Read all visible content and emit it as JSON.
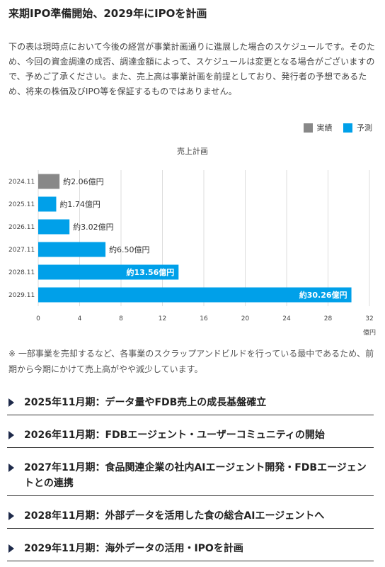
{
  "header": {
    "title": "来期IPO準備開始、2029年にIPOを計画"
  },
  "intro_text": "下の表は現時点において今後の経営が事業計画通りに進展した場合のスケジュールです。そのため、今回の資金調達の成否、調達金額によって、スケジュールは変更となる場合がございますので、予めご了承ください。また、売上高は事業計画を前提としており、発行者の予想であるため、将来の株価及びIPO等を保証するものではありません。",
  "legend": {
    "actual": {
      "label": "実績",
      "color": "#888888"
    },
    "forecast": {
      "label": "予測",
      "color": "#00a0e9"
    }
  },
  "chart_data": {
    "type": "bar",
    "orientation": "horizontal",
    "title": "売上計画",
    "xlabel": "億円",
    "xlim": [
      0,
      32
    ],
    "xticks": [
      0,
      4,
      8,
      12,
      16,
      20,
      24,
      28,
      32
    ],
    "categories": [
      "2024.11",
      "2025.11",
      "2026.11",
      "2027.11",
      "2028.11",
      "2029.11"
    ],
    "values": [
      2.06,
      1.74,
      3.02,
      6.5,
      13.56,
      30.26
    ],
    "kind": [
      "actual",
      "forecast",
      "forecast",
      "forecast",
      "forecast",
      "forecast"
    ],
    "data_labels": [
      "約2.06億円",
      "約1.74億円",
      "約3.02億円",
      "約6.50億円",
      "約13.56億円",
      "約30.26億円"
    ],
    "grid": true
  },
  "note_text": "※ 一部事業を売却するなど、各事業のスクラップアンドビルドを行っている最中であるため、前期から今期にかけて売上高がやや減少しています。",
  "milestones": [
    {
      "label": "2025年11月期：データ量やFDB売上の成長基盤確立"
    },
    {
      "label": "2026年11月期：FDBエージェント・ユーザーコミュニティの開始"
    },
    {
      "label": "2027年11月期：食品関連企業の社内AIエージェント開発・FDBエージェントとの連携"
    },
    {
      "label": "2028年11月期：外部データを活用した食の総合AIエージェントへ"
    },
    {
      "label": "2029年11月期：海外データの活用・IPOを計画"
    }
  ]
}
